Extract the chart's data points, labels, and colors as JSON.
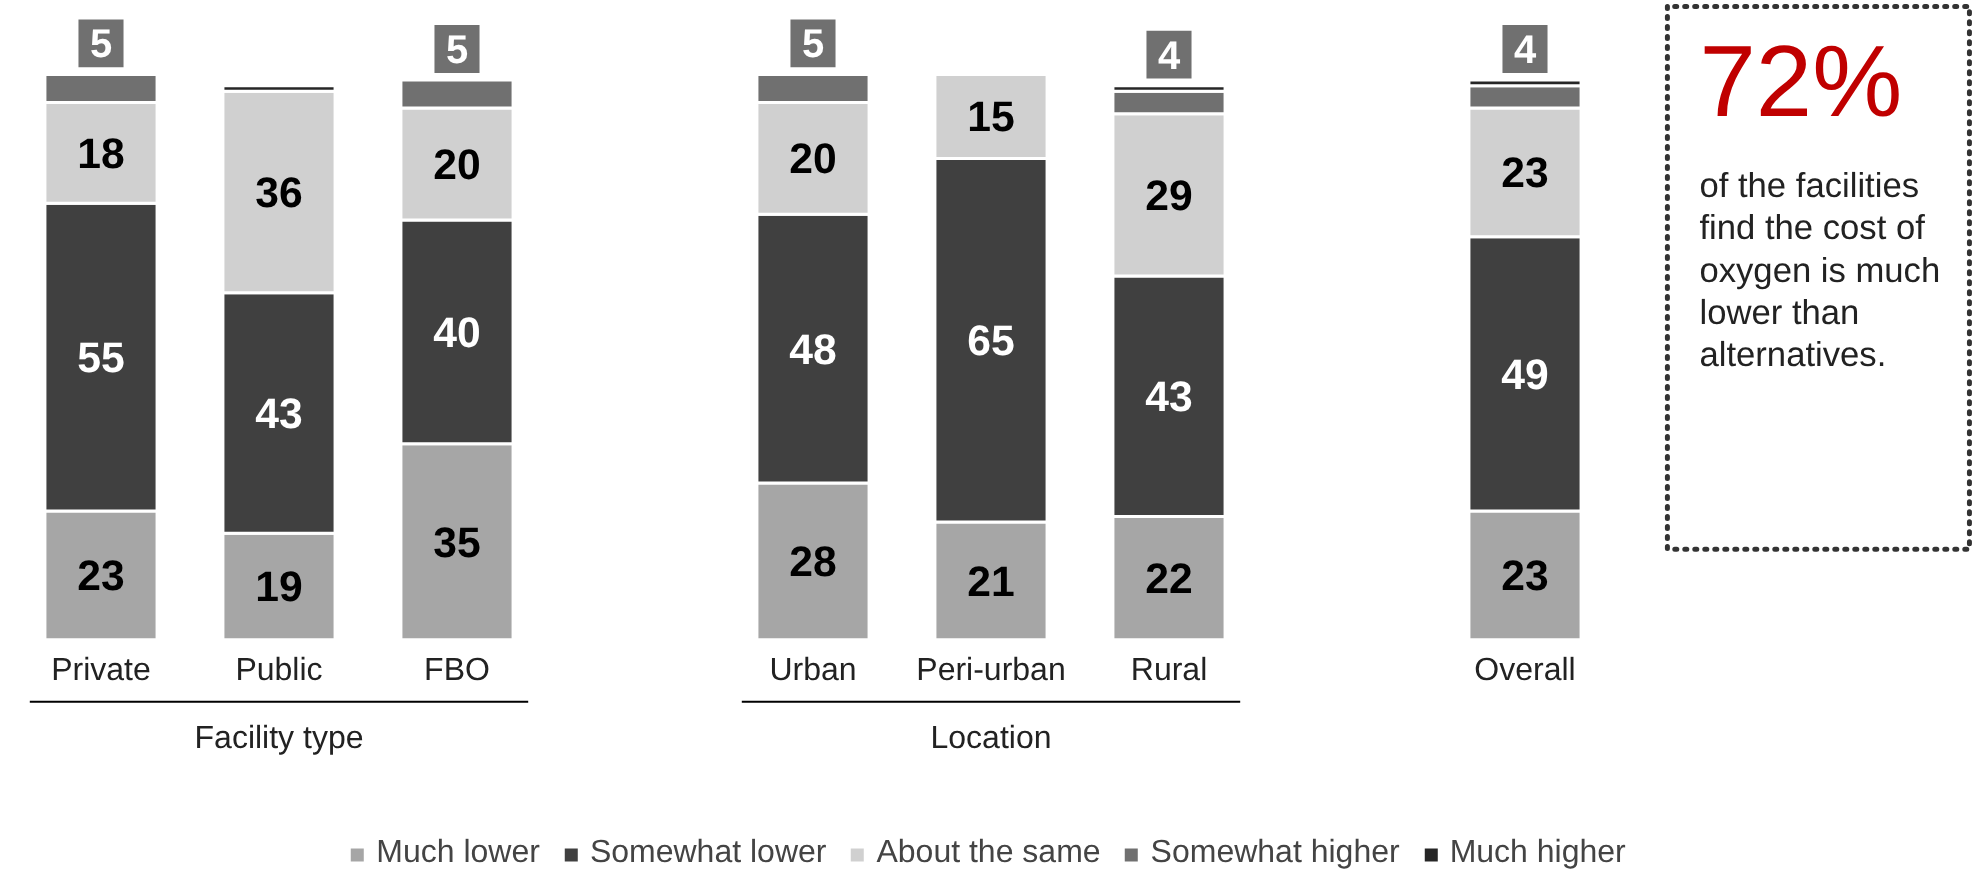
{
  "chart_data": {
    "type": "bar",
    "stacked": true,
    "categories": [
      "Private",
      "Public",
      "FBO",
      null,
      "Urban",
      "Peri-urban",
      "Rural",
      null,
      "Overall"
    ],
    "series": [
      {
        "name": "Much lower",
        "color": "#a6a6a6",
        "values": [
          23,
          19,
          35,
          null,
          28,
          21,
          22,
          null,
          23
        ],
        "value_labels": [
          "23",
          "19",
          "35",
          null,
          "28",
          "21",
          "22",
          null,
          "23"
        ]
      },
      {
        "name": "Somewhat lower",
        "color": "#404040",
        "values": [
          55,
          43,
          40,
          null,
          48,
          65,
          43,
          null,
          49
        ],
        "value_labels": [
          "55",
          "43",
          "40",
          null,
          "48",
          "65",
          "43",
          null,
          "49"
        ]
      },
      {
        "name": "About the same",
        "color": "#d0d0d0",
        "values": [
          18,
          36,
          20,
          null,
          20,
          15,
          29,
          null,
          23
        ],
        "value_labels": [
          "18",
          "36",
          "20",
          null,
          "20",
          "15",
          "29",
          null,
          "23"
        ]
      },
      {
        "name": "Somewhat higher",
        "color": "#707070",
        "values": [
          5,
          null,
          5,
          null,
          5,
          null,
          4,
          null,
          4
        ],
        "value_labels": [
          "5",
          null,
          "5",
          null,
          "5",
          null,
          "4",
          null,
          "4"
        ]
      },
      {
        "name": "Much higher",
        "color": "#262626",
        "values": [
          null,
          1,
          null,
          null,
          null,
          null,
          1,
          null,
          1
        ],
        "value_labels": [
          null,
          null,
          null,
          null,
          null,
          null,
          null,
          null,
          null
        ]
      }
    ],
    "annotations": [
      "Facility type",
      "Location",
      "72%",
      "of the facilities find the cost of oxygen is much lower than alternatives."
    ],
    "legend": "bottom"
  }
}
